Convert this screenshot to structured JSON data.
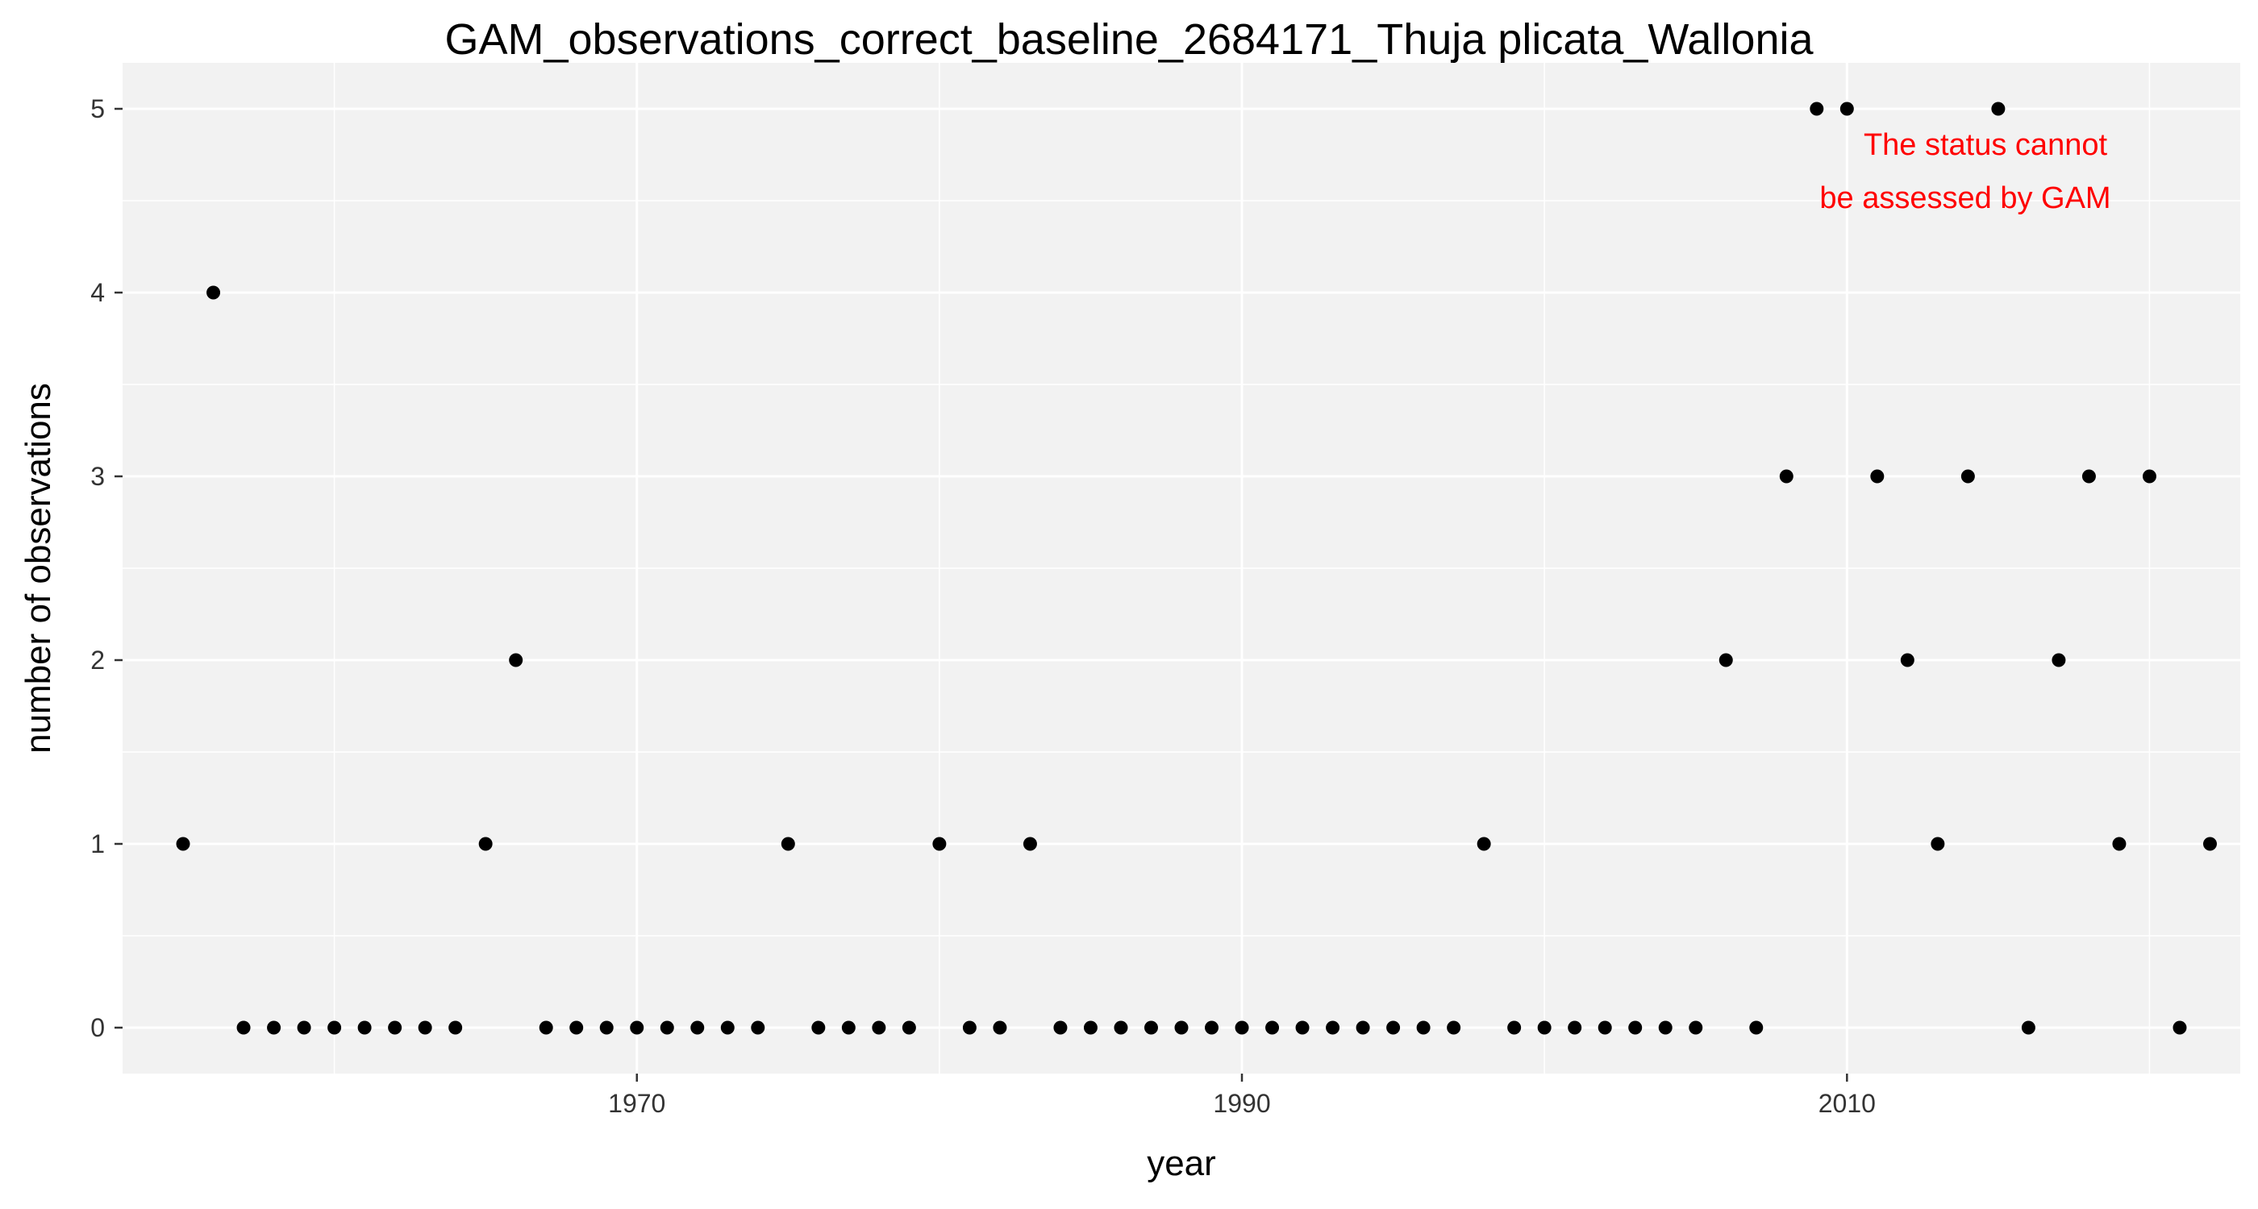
{
  "chart_data": {
    "type": "scatter",
    "title": "GAM_observations_correct_baseline_2684171_Thuja plicata_Wallonia",
    "xlabel": "year",
    "ylabel": "number of observations",
    "xlim": [
      1953,
      2023
    ],
    "ylim": [
      -0.25,
      5.25
    ],
    "x_ticks": [
      1970,
      1990,
      2010
    ],
    "y_ticks": [
      0,
      1,
      2,
      3,
      4,
      5
    ],
    "grid": true,
    "annotation": {
      "lines": [
        "The status cannot",
        "be assessed by GAM"
      ],
      "color": "#ff0000"
    },
    "point_color": "#000000",
    "panel_color": "#f2f2f2",
    "grid_color": "#ffffff",
    "x": [
      1955,
      1956,
      1957,
      1958,
      1959,
      1960,
      1961,
      1962,
      1963,
      1964,
      1965,
      1966,
      1967,
      1968,
      1969,
      1970,
      1971,
      1972,
      1973,
      1974,
      1975,
      1976,
      1977,
      1978,
      1979,
      1980,
      1981,
      1982,
      1983,
      1984,
      1985,
      1986,
      1987,
      1988,
      1989,
      1990,
      1991,
      1992,
      1993,
      1994,
      1995,
      1996,
      1997,
      1998,
      1999,
      2000,
      2001,
      2002,
      2003,
      2004,
      2005,
      2006,
      2007,
      2008,
      2009,
      2010,
      2011,
      2012,
      2013,
      2014,
      2015,
      2016,
      2017,
      2018,
      2019,
      2020,
      2021,
      2022
    ],
    "y": [
      1,
      4,
      0,
      0,
      0,
      0,
      0,
      0,
      0,
      0,
      1,
      2,
      0,
      0,
      0,
      0,
      0,
      0,
      0,
      0,
      1,
      0,
      0,
      0,
      0,
      1,
      0,
      0,
      1,
      0,
      0,
      0,
      0,
      0,
      0,
      0,
      0,
      0,
      0,
      0,
      0,
      0,
      0,
      1,
      0,
      0,
      0,
      0,
      0,
      0,
      0,
      2,
      0,
      3,
      5,
      5,
      3,
      2,
      1,
      3,
      5,
      0,
      2,
      3,
      1,
      3,
      0,
      1
    ]
  }
}
